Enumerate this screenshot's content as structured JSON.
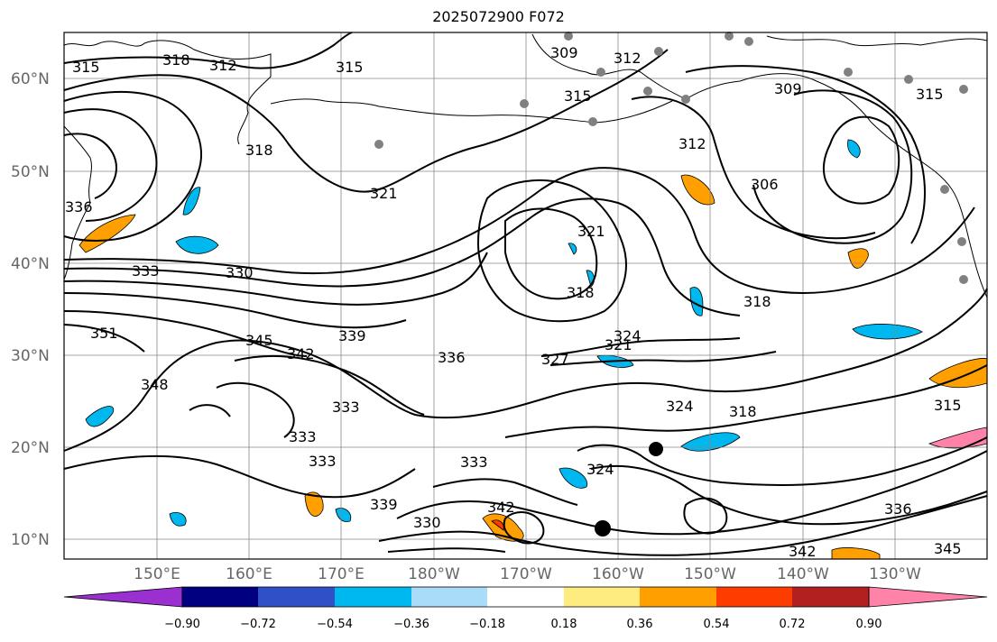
{
  "title": "2025072900 F072",
  "map": {
    "lat_labels": [
      "60°N",
      "50°N",
      "40°N",
      "30°N",
      "20°N",
      "10°N"
    ],
    "lon_labels": [
      "150°E",
      "160°E",
      "170°E",
      "180°W",
      "170°W",
      "160°W",
      "150°W",
      "140°W",
      "130°W"
    ],
    "lon_range": [
      140,
      -120
    ],
    "lat_range": [
      8,
      65
    ],
    "gridlines": true
  },
  "contour_labels": [
    "315",
    "318",
    "312",
    "315",
    "309",
    "312",
    "315",
    "309",
    "315",
    "318",
    "312",
    "306",
    "321",
    "321",
    "318",
    "318",
    "336",
    "333",
    "330",
    "351",
    "345",
    "342",
    "339",
    "336",
    "348",
    "327",
    "321",
    "324",
    "324",
    "318",
    "315",
    "333",
    "333",
    "333",
    "339",
    "330",
    "342",
    "333",
    "324",
    "342",
    "336",
    "345"
  ],
  "colorbar": {
    "tick_labels": [
      "−0.90",
      "−0.72",
      "−0.54",
      "−0.36",
      "−0.18",
      "0.18",
      "0.36",
      "0.54",
      "0.72",
      "0.90"
    ],
    "colors": [
      "#9b30d0",
      "#000080",
      "#3050c8",
      "#00b8f0",
      "#a8dcf8",
      "#ffffff",
      "#ffec80",
      "#ffa000",
      "#ff3c00",
      "#b22020",
      "#ff82a8"
    ],
    "extend": "both"
  },
  "markers": {
    "station_color": "#808080",
    "tc_color": "#000000"
  }
}
